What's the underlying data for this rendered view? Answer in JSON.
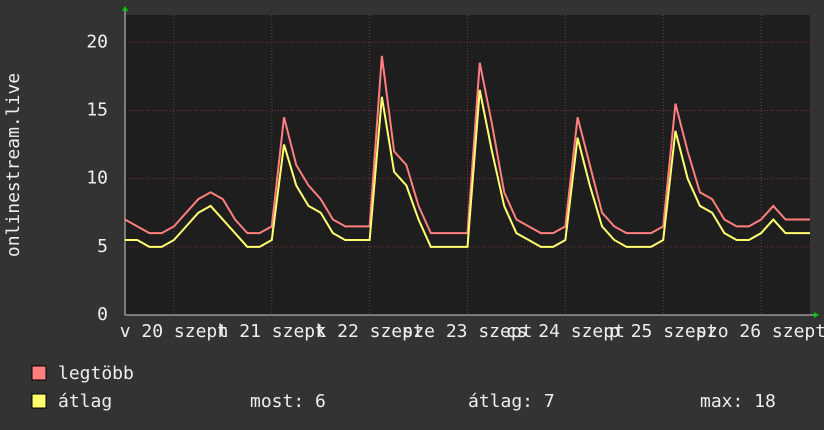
{
  "chart_data": {
    "type": "line",
    "y_label": "onlinestream.live",
    "x": [
      0,
      3,
      6,
      9,
      12,
      15,
      18,
      21,
      24,
      27,
      30,
      33,
      36,
      39,
      42,
      45,
      48,
      51,
      54,
      57,
      60,
      63,
      66,
      69,
      72,
      75,
      78,
      81,
      84,
      87,
      90,
      93,
      96,
      99,
      102,
      105,
      108,
      111,
      114,
      117,
      120,
      123,
      126,
      129,
      132,
      135,
      138,
      141,
      144,
      147,
      150,
      153,
      156,
      159,
      162,
      165,
      168
    ],
    "series": [
      {
        "name": "legtöbb",
        "color": "#ff7f7f",
        "values": [
          7,
          6.5,
          6,
          6,
          6.5,
          7.5,
          8.5,
          9,
          8.5,
          7,
          6,
          6,
          6.5,
          14.5,
          11,
          9.5,
          8.5,
          7,
          6.5,
          6.5,
          6.5,
          19,
          12,
          11,
          8,
          6,
          6,
          6,
          6,
          18.5,
          14,
          9,
          7,
          6.5,
          6,
          6,
          6.5,
          14.5,
          11,
          7.5,
          6.5,
          6,
          6,
          6,
          6.5,
          15.5,
          12,
          9,
          8.5,
          7,
          6.5,
          6.5,
          7,
          8,
          7,
          7,
          7
        ]
      },
      {
        "name": "átlag",
        "color": "#ffff6f",
        "values": [
          5.5,
          5.5,
          5,
          5,
          5.5,
          6.5,
          7.5,
          8,
          7,
          6,
          5,
          5,
          5.5,
          12.5,
          9.5,
          8,
          7.5,
          6,
          5.5,
          5.5,
          5.5,
          16,
          10.5,
          9.5,
          7,
          5,
          5,
          5,
          5,
          16.5,
          12,
          8,
          6,
          5.5,
          5,
          5,
          5.5,
          13,
          9.5,
          6.5,
          5.5,
          5,
          5,
          5,
          5.5,
          13.5,
          10,
          8,
          7.5,
          6,
          5.5,
          5.5,
          6,
          7,
          6,
          6,
          6
        ]
      }
    ],
    "xlim": [
      0,
      168
    ],
    "xticks": [
      {
        "value": 12,
        "label": "v 20 szept"
      },
      {
        "value": 36,
        "label": "h 21 szept"
      },
      {
        "value": 60,
        "label": "k 22 szept"
      },
      {
        "value": 84,
        "label": "sze 23 szept"
      },
      {
        "value": 108,
        "label": "cs 24 szept"
      },
      {
        "value": 132,
        "label": "p 25 szept"
      },
      {
        "value": 156,
        "label": "szo 26 szept"
      }
    ],
    "ylim": [
      0,
      22
    ],
    "yticks": [
      0,
      5,
      10,
      15,
      20
    ],
    "grid": true,
    "stats": [
      "most: 6",
      "átlag: 7",
      "max: 18"
    ]
  }
}
